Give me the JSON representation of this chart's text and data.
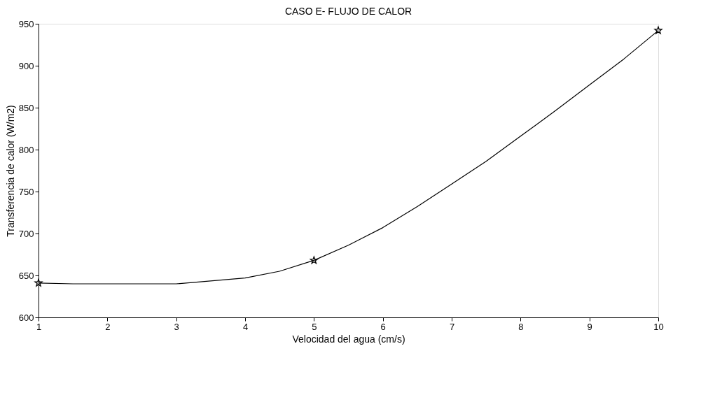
{
  "chart_data": {
    "type": "line",
    "title": "CASO E- FLUJO DE CALOR",
    "xlabel": "Velocidad del agua (cm/s)",
    "ylabel": "Transferencia de calor (W/m2)",
    "xlim": [
      1,
      10
    ],
    "xticks": [
      1,
      2,
      3,
      4,
      5,
      6,
      7,
      8,
      9,
      10
    ],
    "ylim": [
      600,
      950
    ],
    "yticks": [
      600,
      650,
      700,
      750,
      800,
      850,
      900,
      950
    ],
    "grid": false,
    "series": [
      {
        "color": "#000000",
        "marker": "none",
        "line_style": "solid",
        "x": [
          1,
          1.5,
          2,
          3,
          4,
          4.5,
          5,
          5.5,
          6,
          6.5,
          7,
          7.5,
          8,
          8.5,
          9,
          9.5,
          10
        ],
        "values": [
          641,
          640,
          640,
          640,
          647,
          655,
          668,
          686,
          707,
          732,
          759,
          786,
          816,
          846,
          877,
          908,
          942
        ]
      },
      {
        "type": "scatter",
        "color": "#000000",
        "marker": "star",
        "x": [
          1,
          5,
          10
        ],
        "values": [
          641,
          668,
          942
        ]
      }
    ]
  }
}
